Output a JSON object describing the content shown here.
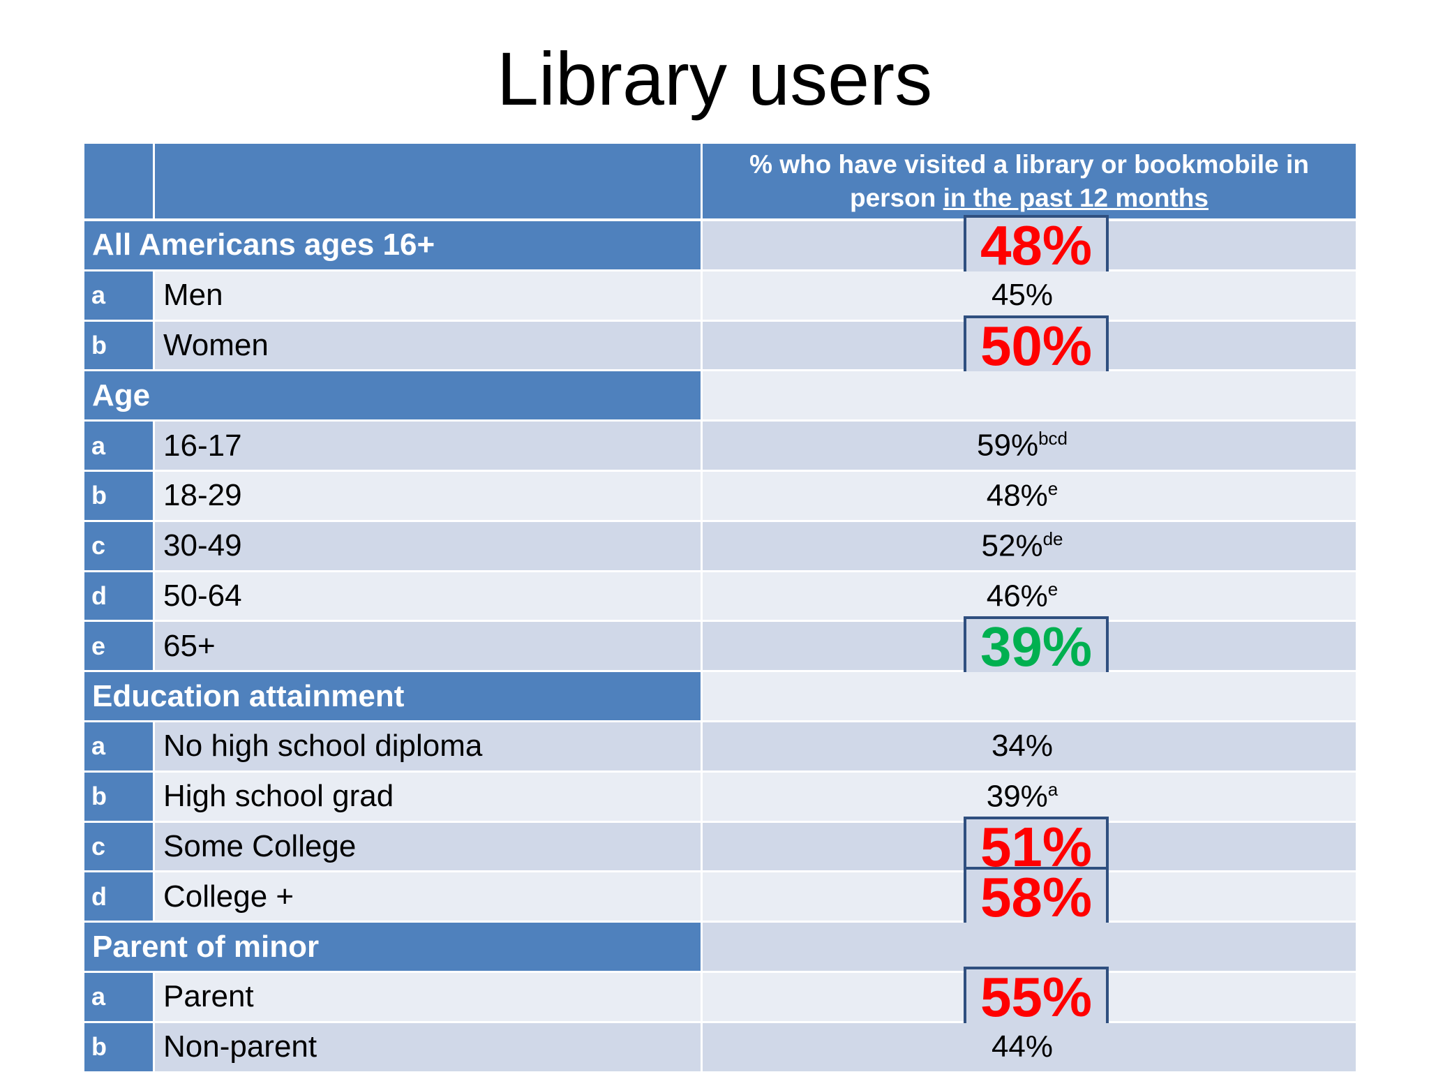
{
  "title": "Library users",
  "table": {
    "header": {
      "text": "% who have visited a library or bookmobile in person ",
      "underlined": "in the past 12 months"
    },
    "rows": [
      {
        "label": "All Americans ages 16+",
        "value": "48%",
        "highlight": "#ff0000"
      },
      {
        "letter": "a",
        "label": "Men",
        "value": "45%"
      },
      {
        "letter": "b",
        "label": "Women",
        "value": "50%",
        "highlight": "#ff0000"
      },
      {
        "label": "Age"
      },
      {
        "letter": "a",
        "label": "16-17",
        "value": "59%",
        "note": "bcd"
      },
      {
        "letter": "b",
        "label": "18-29",
        "value": "48%",
        "note": "e"
      },
      {
        "letter": "c",
        "label": "30-49",
        "value": "52%",
        "note": "de"
      },
      {
        "letter": "d",
        "label": "50-64",
        "value": "46%",
        "note": "e"
      },
      {
        "letter": "e",
        "label": "65+",
        "value": "39%",
        "highlight": "#00b050"
      },
      {
        "label": "Education attainment"
      },
      {
        "letter": "a",
        "label": "No high school diploma",
        "value": "34%"
      },
      {
        "letter": "b",
        "label": "High school grad",
        "value": "39%",
        "note": "a"
      },
      {
        "letter": "c",
        "label": "Some College",
        "value": "51%",
        "highlight": "#ff0000"
      },
      {
        "letter": "d",
        "label": "College +",
        "value": "58%",
        "highlight": "#ff0000"
      },
      {
        "label": "Parent of minor"
      },
      {
        "letter": "a",
        "label": "Parent",
        "value": "55%",
        "highlight": "#ff0000"
      },
      {
        "letter": "b",
        "label": "Non-parent",
        "value": "44%"
      }
    ]
  }
}
